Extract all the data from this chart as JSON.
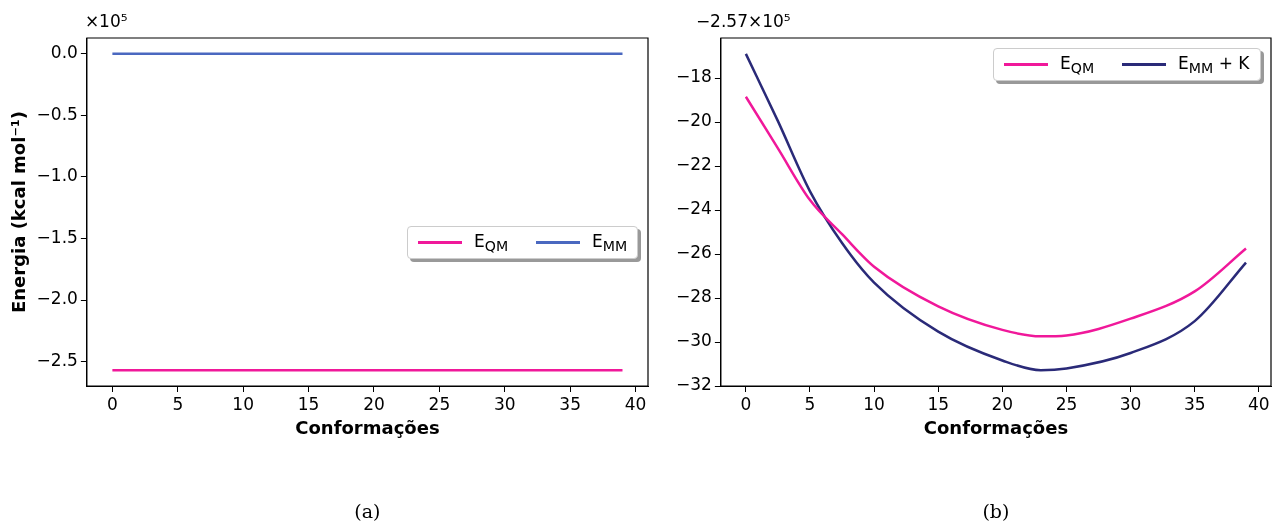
{
  "chart_data": [
    {
      "type": "line",
      "xlabel": "Conformações",
      "ylabel": "Energia (kcal mol⁻¹)",
      "xlim": [
        -1.95,
        40.95
      ],
      "xticks": [
        0,
        5,
        10,
        15,
        20,
        25,
        30,
        35,
        40
      ],
      "ylim": [
        -2.6985,
        0.1285
      ],
      "yticks": [
        {
          "value": 0,
          "label": "0.0"
        },
        {
          "value": -0.5,
          "label": "−0.5"
        },
        {
          "value": -1,
          "label": "−1.0"
        },
        {
          "value": -1.5,
          "label": "−1.5"
        },
        {
          "value": -2,
          "label": "−2.0"
        },
        {
          "value": -2.5,
          "label": "−2.5"
        }
      ],
      "legend": "right",
      "marker": "none",
      "series": [
        {
          "name": "E$_{QM}$",
          "color": "#f0189a",
          "x": [
            0,
            10,
            20,
            30,
            39
          ],
          "values": [
            -2.57,
            -2.57,
            -2.57,
            -2.57,
            -2.57
          ]
        },
        {
          "name": "E$_{MM}$",
          "color": "#4a68c0",
          "x": [
            0,
            10,
            20,
            30,
            39
          ],
          "values": [
            0,
            0,
            0,
            0,
            0
          ]
        }
      ],
      "annotations": [
        "×10⁵",
        "(a)"
      ]
    },
    {
      "type": "line",
      "xlabel": "Conformações",
      "xlim": [
        -1.95,
        40.95
      ],
      "xticks": [
        0,
        5,
        10,
        15,
        20,
        25,
        30,
        35,
        40
      ],
      "ylim": [
        -32,
        -16.18
      ],
      "yticks": [
        {
          "value": -18,
          "label": "−18"
        },
        {
          "value": -20,
          "label": "−20"
        },
        {
          "value": -22,
          "label": "−22"
        },
        {
          "value": -24,
          "label": "−24"
        },
        {
          "value": -26,
          "label": "−26"
        },
        {
          "value": -28,
          "label": "−28"
        },
        {
          "value": -30,
          "label": "−30"
        },
        {
          "value": -32,
          "label": "−32"
        }
      ],
      "legend": "top right",
      "marker": "none",
      "series": [
        {
          "name": "E$_{QM}$",
          "color": "#f0189a",
          "x": [
            0,
            2.5,
            5,
            7.5,
            10,
            15,
            20,
            23,
            25,
            30,
            35,
            39
          ],
          "values": [
            -18.85,
            -21.2,
            -23.55,
            -25.1,
            -26.58,
            -28.38,
            -29.45,
            -29.74,
            -29.7,
            -28.94,
            -27.7,
            -25.75
          ]
        },
        {
          "name": "E$_{MM}$ + K",
          "color": "#2a2a78",
          "x": [
            0,
            2.5,
            5,
            7.5,
            10,
            15,
            20,
            23,
            25,
            30,
            35,
            39
          ],
          "values": [
            -16.9,
            -19.96,
            -23.15,
            -25.5,
            -27.3,
            -29.53,
            -30.84,
            -31.28,
            -31.2,
            -30.5,
            -29.05,
            -26.39
          ]
        }
      ],
      "annotations": [
        "−2.57×10⁵",
        "(b)"
      ]
    }
  ]
}
